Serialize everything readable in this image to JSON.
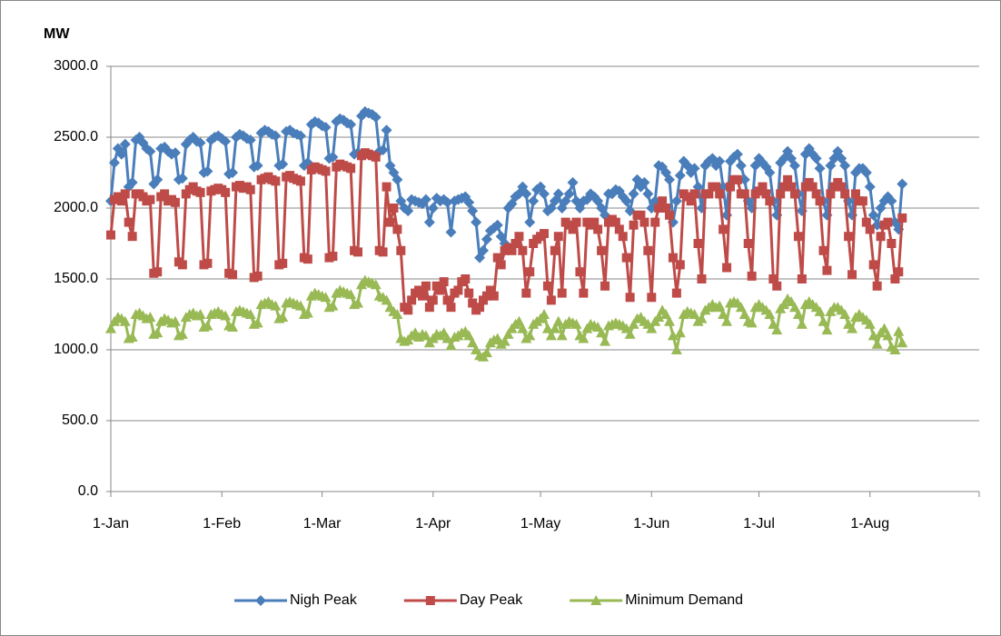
{
  "chart_data": {
    "type": "line",
    "y_axis_label": "MW",
    "categories": [
      "1-Jan",
      null,
      null,
      null,
      null,
      null,
      null,
      null,
      null,
      null,
      null,
      null,
      null,
      null,
      null,
      null,
      null,
      null,
      null,
      null,
      null,
      null,
      null,
      null,
      null,
      null,
      null,
      null,
      null,
      null,
      null,
      "1-Feb",
      null,
      null,
      null,
      null,
      null,
      null,
      null,
      null,
      null,
      null,
      null,
      null,
      null,
      null,
      null,
      null,
      null,
      null,
      null,
      null,
      null,
      null,
      null,
      null,
      null,
      null,
      null,
      "1-Mar",
      null,
      null,
      null,
      null,
      null,
      null,
      null,
      null,
      null,
      null,
      null,
      null,
      null,
      null,
      null,
      null,
      null,
      null,
      null,
      null,
      null,
      null,
      null,
      null,
      null,
      null,
      null,
      null,
      null,
      null,
      "1-Apr",
      null,
      null,
      null,
      null,
      null,
      null,
      null,
      null,
      null,
      null,
      null,
      null,
      null,
      null,
      null,
      null,
      null,
      null,
      null,
      null,
      null,
      null,
      null,
      null,
      null,
      null,
      null,
      null,
      null,
      "1-May",
      null,
      null,
      null,
      null,
      null,
      null,
      null,
      null,
      null,
      null,
      null,
      null,
      null,
      null,
      null,
      null,
      null,
      null,
      null,
      null,
      null,
      null,
      null,
      null,
      null,
      null,
      null,
      null,
      null,
      null,
      "1-Jun",
      null,
      null,
      null,
      null,
      null,
      null,
      null,
      null,
      null,
      null,
      null,
      null,
      null,
      null,
      null,
      null,
      null,
      null,
      null,
      null,
      null,
      null,
      null,
      null,
      null,
      null,
      null,
      null,
      null,
      "1-Jul",
      null,
      null,
      null,
      null,
      null,
      null,
      null,
      null,
      null,
      null,
      null,
      null,
      null,
      null,
      null,
      null,
      null,
      null,
      null,
      null,
      null,
      null,
      null,
      null,
      null,
      null,
      null,
      null,
      null,
      null,
      "1-Aug",
      null,
      null,
      null,
      null,
      null,
      null,
      null,
      null,
      null
    ],
    "series": [
      {
        "name": "Nigh Peak",
        "color": "#4a7ebb",
        "marker": "diamond",
        "values": [
          2050,
          2320,
          2420,
          2380,
          2450,
          2150,
          2180,
          2480,
          2500,
          2460,
          2420,
          2400,
          2170,
          2200,
          2420,
          2430,
          2400,
          2380,
          2390,
          2200,
          2210,
          2450,
          2480,
          2500,
          2470,
          2460,
          2250,
          2260,
          2480,
          2500,
          2510,
          2490,
          2470,
          2240,
          2250,
          2500,
          2520,
          2510,
          2490,
          2480,
          2290,
          2300,
          2530,
          2550,
          2540,
          2520,
          2510,
          2300,
          2310,
          2540,
          2550,
          2530,
          2520,
          2510,
          2300,
          2320,
          2590,
          2610,
          2600,
          2580,
          2570,
          2350,
          2360,
          2610,
          2630,
          2620,
          2600,
          2590,
          2380,
          2390,
          2650,
          2680,
          2670,
          2660,
          2640,
          2400,
          2410,
          2550,
          2300,
          2250,
          2200,
          2050,
          2000,
          1980,
          2060,
          2050,
          2040,
          2030,
          2060,
          1900,
          2000,
          2070,
          2050,
          2060,
          2040,
          1830,
          2050,
          2060,
          2070,
          2080,
          2040,
          1980,
          1900,
          1650,
          1700,
          1780,
          1840,
          1860,
          1880,
          1800,
          1750,
          2000,
          2030,
          2080,
          2100,
          2150,
          2100,
          1900,
          2050,
          2130,
          2150,
          2100,
          1980,
          2000,
          2050,
          2100,
          2000,
          2050,
          2100,
          2180,
          2050,
          2000,
          2050,
          2060,
          2100,
          2080,
          2050,
          2000,
          1950,
          2100,
          2100,
          2130,
          2120,
          2080,
          2050,
          1980,
          2100,
          2200,
          2150,
          2180,
          2100,
          2000,
          2050,
          2300,
          2290,
          2250,
          2200,
          1900,
          2050,
          2230,
          2330,
          2300,
          2250,
          2280,
          2150,
          2000,
          2300,
          2330,
          2350,
          2300,
          2330,
          2150,
          1950,
          2330,
          2360,
          2380,
          2300,
          2200,
          2050,
          2000,
          2300,
          2350,
          2320,
          2290,
          2250,
          2050,
          1950,
          2320,
          2350,
          2400,
          2350,
          2300,
          2100,
          1980,
          2380,
          2420,
          2380,
          2350,
          2280,
          2050,
          1950,
          2300,
          2350,
          2400,
          2350,
          2300,
          2050,
          1950,
          2250,
          2280,
          2280,
          2250,
          2150,
          1950,
          1880,
          2000,
          2050,
          2080,
          2050,
          1900,
          1850,
          2170
        ]
      },
      {
        "name": "Day Peak",
        "color": "#be4b48",
        "marker": "square",
        "values": [
          1810,
          2060,
          2080,
          2050,
          2100,
          1900,
          1800,
          2100,
          2100,
          2080,
          2050,
          2060,
          1540,
          1550,
          2080,
          2100,
          2050,
          2060,
          2040,
          1620,
          1600,
          2100,
          2130,
          2150,
          2120,
          2110,
          1600,
          1610,
          2120,
          2130,
          2140,
          2130,
          2110,
          1540,
          1530,
          2150,
          2160,
          2140,
          2150,
          2130,
          1510,
          1520,
          2200,
          2210,
          2220,
          2200,
          2190,
          1600,
          1610,
          2220,
          2230,
          2210,
          2200,
          2190,
          1650,
          1640,
          2270,
          2290,
          2280,
          2270,
          2260,
          1650,
          1660,
          2290,
          2310,
          2300,
          2290,
          2280,
          1700,
          1690,
          2370,
          2390,
          2380,
          2370,
          2360,
          1700,
          1690,
          2150,
          1900,
          2000,
          1850,
          1700,
          1300,
          1280,
          1350,
          1400,
          1420,
          1380,
          1450,
          1300,
          1350,
          1450,
          1420,
          1480,
          1350,
          1300,
          1400,
          1420,
          1480,
          1500,
          1400,
          1330,
          1280,
          1300,
          1350,
          1380,
          1420,
          1380,
          1650,
          1600,
          1700,
          1720,
          1700,
          1750,
          1800,
          1700,
          1400,
          1550,
          1750,
          1780,
          1800,
          1820,
          1450,
          1350,
          1700,
          1800,
          1400,
          1900,
          1880,
          1850,
          1900,
          1550,
          1400,
          1900,
          1880,
          1900,
          1850,
          1700,
          1450,
          1900,
          1920,
          1900,
          1850,
          1800,
          1650,
          1370,
          1880,
          1950,
          1950,
          1900,
          1700,
          1370,
          1900,
          2000,
          2050,
          2000,
          1950,
          1650,
          1400,
          1600,
          2100,
          2080,
          2050,
          2100,
          1750,
          1500,
          2100,
          2100,
          2150,
          2150,
          2100,
          1850,
          1580,
          2150,
          2200,
          2200,
          2100,
          2100,
          1750,
          1520,
          2100,
          2120,
          2150,
          2100,
          2050,
          1500,
          1450,
          2100,
          2150,
          2200,
          2150,
          2100,
          1800,
          1500,
          2150,
          2180,
          2150,
          2100,
          2050,
          1700,
          1560,
          2100,
          2150,
          2180,
          2150,
          2100,
          1800,
          1530,
          2100,
          2050,
          2050,
          1900,
          1850,
          1600,
          1450,
          1800,
          1880,
          1900,
          1750,
          1500,
          1550,
          1930
        ]
      },
      {
        "name": "Minimum Demand",
        "color": "#98b954",
        "marker": "triangle",
        "values": [
          1150,
          1200,
          1230,
          1220,
          1200,
          1080,
          1090,
          1250,
          1260,
          1240,
          1220,
          1230,
          1110,
          1120,
          1200,
          1220,
          1210,
          1190,
          1200,
          1100,
          1110,
          1230,
          1250,
          1260,
          1240,
          1250,
          1160,
          1170,
          1250,
          1260,
          1270,
          1250,
          1240,
          1170,
          1160,
          1270,
          1280,
          1270,
          1260,
          1250,
          1180,
          1190,
          1320,
          1330,
          1340,
          1320,
          1310,
          1220,
          1230,
          1330,
          1340,
          1330,
          1320,
          1310,
          1250,
          1260,
          1380,
          1400,
          1390,
          1380,
          1370,
          1300,
          1310,
          1400,
          1420,
          1410,
          1400,
          1390,
          1320,
          1330,
          1460,
          1490,
          1480,
          1470,
          1460,
          1380,
          1370,
          1350,
          1300,
          1270,
          1250,
          1080,
          1060,
          1070,
          1100,
          1120,
          1090,
          1110,
          1100,
          1050,
          1080,
          1110,
          1100,
          1120,
          1080,
          1030,
          1090,
          1100,
          1120,
          1130,
          1100,
          1050,
          1000,
          960,
          950,
          980,
          1050,
          1070,
          1080,
          1040,
          1060,
          1110,
          1150,
          1180,
          1200,
          1150,
          1080,
          1100,
          1180,
          1200,
          1220,
          1250,
          1150,
          1100,
          1150,
          1200,
          1100,
          1180,
          1200,
          1190,
          1180,
          1100,
          1080,
          1150,
          1180,
          1170,
          1160,
          1120,
          1060,
          1170,
          1180,
          1190,
          1180,
          1170,
          1150,
          1110,
          1180,
          1220,
          1230,
          1200,
          1180,
          1150,
          1200,
          1230,
          1280,
          1250,
          1200,
          1100,
          1000,
          1120,
          1250,
          1270,
          1260,
          1250,
          1200,
          1220,
          1280,
          1300,
          1320,
          1300,
          1310,
          1250,
          1200,
          1330,
          1340,
          1330,
          1300,
          1250,
          1200,
          1190,
          1300,
          1320,
          1300,
          1280,
          1250,
          1180,
          1140,
          1290,
          1320,
          1360,
          1340,
          1300,
          1250,
          1180,
          1320,
          1340,
          1320,
          1300,
          1270,
          1200,
          1140,
          1270,
          1300,
          1300,
          1280,
          1250,
          1180,
          1150,
          1230,
          1250,
          1230,
          1210,
          1180,
          1100,
          1040,
          1120,
          1150,
          1100,
          1020,
          1000,
          1130,
          1050
        ]
      }
    ],
    "ylim": [
      0,
      3000
    ],
    "yticks": [
      {
        "value": 0,
        "label": "0.0"
      },
      {
        "value": 500,
        "label": "500.0"
      },
      {
        "value": 1000,
        "label": "1000.0"
      },
      {
        "value": 1500,
        "label": "1500.0"
      },
      {
        "value": 2000,
        "label": "2000.0"
      },
      {
        "value": 2500,
        "label": "2500.0"
      },
      {
        "value": 3000,
        "label": "3000.0"
      }
    ],
    "grid": true,
    "legend": "bottom"
  }
}
